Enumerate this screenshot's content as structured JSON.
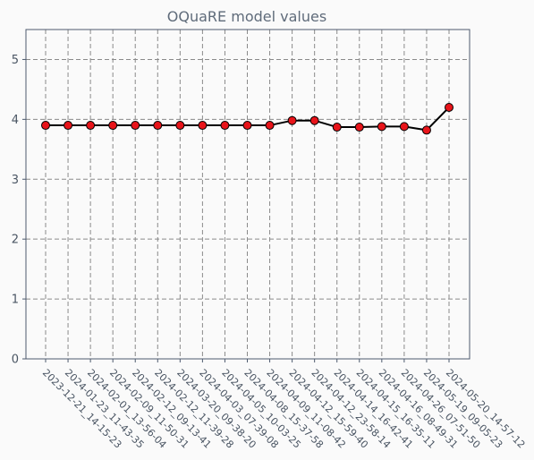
{
  "chart_data": {
    "type": "line",
    "title": "OQuaRE model values",
    "xlabel": "",
    "ylabel": "",
    "ylim": [
      0,
      5.5
    ],
    "yticks": [
      0,
      1,
      2,
      3,
      4,
      5
    ],
    "grid": true,
    "categories": [
      "2023-12-21_14-15-23",
      "2024-01-23_11-43-35",
      "2024-02-01_13-56-04",
      "2024-02-09_11-50-31",
      "2024-02-12_09-13-41",
      "2024-02-12_11-39-28",
      "2024-03-20_09-38-20",
      "2024-04-03_07-39-08",
      "2024-04-05_10-03-25",
      "2024-04-08_15-37-58",
      "2024-04-09_11-08-42",
      "2024-04-12_15-59-40",
      "2024-04-12_23-58-14",
      "2024-04-14_16-42-41",
      "2024-04-15_16-35-11",
      "2024-04-16_08-49-31",
      "2024-04-26_07-51-50",
      "2024-05-19_09-05-23",
      "2024-05-20_14-57-12"
    ],
    "series": [
      {
        "values": [
          3.9,
          3.9,
          3.9,
          3.9,
          3.9,
          3.9,
          3.9,
          3.9,
          3.9,
          3.9,
          3.9,
          3.98,
          3.98,
          3.87,
          3.87,
          3.88,
          3.88,
          3.82,
          4.2
        ],
        "line_color": "#000000",
        "marker_color": "#e8141a"
      }
    ]
  }
}
